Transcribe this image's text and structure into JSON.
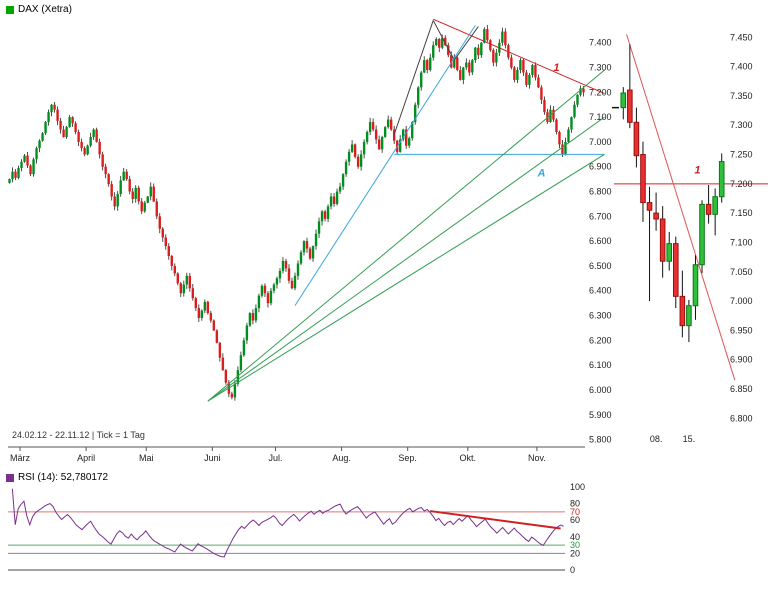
{
  "window": {
    "bg": "#ffffff"
  },
  "chart_data": [
    {
      "id": "main",
      "type": "candlestick",
      "title": "DAX (Xetra)",
      "swatch_color": "#00a500",
      "period_label": "24.02.12 - 22.11.12 | Tick = 1 Tag",
      "ylim": [
        5770,
        7540
      ],
      "up_color": "#008f1f",
      "down_color": "#d91e1e",
      "wick_color": "#222222",
      "y_ticks": [
        "7.400",
        "7.300",
        "7.200",
        "7.100",
        "7.000",
        "6.900",
        "6.800",
        "6.700",
        "6.600",
        "6.500",
        "6.400",
        "6.300",
        "6.200",
        "6.100",
        "6.000",
        "5.900",
        "5.800"
      ],
      "x_months": [
        {
          "label": "März",
          "i": 4
        },
        {
          "label": "April",
          "i": 26
        },
        {
          "label": "Mai",
          "i": 46
        },
        {
          "label": "Juni",
          "i": 68
        },
        {
          "label": "Jul.",
          "i": 89
        },
        {
          "label": "Aug.",
          "i": 111
        },
        {
          "label": "Sep.",
          "i": 133
        },
        {
          "label": "Okt.",
          "i": 153
        },
        {
          "label": "Nov.",
          "i": 176
        }
      ],
      "closes": [
        6850,
        6880,
        6855,
        6895,
        6920,
        6945,
        6905,
        6870,
        6930,
        6975,
        7005,
        7035,
        7080,
        7120,
        7150,
        7130,
        7085,
        7050,
        7020,
        7060,
        7100,
        7075,
        7040,
        7000,
        6975,
        6950,
        6985,
        7020,
        7050,
        7000,
        6950,
        6900,
        6870,
        6830,
        6780,
        6740,
        6790,
        6845,
        6880,
        6850,
        6800,
        6770,
        6815,
        6760,
        6720,
        6755,
        6780,
        6820,
        6760,
        6700,
        6650,
        6615,
        6580,
        6540,
        6500,
        6470,
        6430,
        6390,
        6425,
        6460,
        6410,
        6370,
        6330,
        6290,
        6320,
        6355,
        6310,
        6280,
        6240,
        6190,
        6130,
        6080,
        6030,
        5985,
        5970,
        6025,
        6080,
        6140,
        6200,
        6260,
        6310,
        6280,
        6330,
        6380,
        6420,
        6390,
        6350,
        6400,
        6425,
        6450,
        6480,
        6520,
        6490,
        6440,
        6410,
        6460,
        6510,
        6555,
        6600,
        6570,
        6530,
        6580,
        6630,
        6680,
        6720,
        6690,
        6740,
        6780,
        6750,
        6800,
        6820,
        6870,
        6920,
        6960,
        6990,
        6940,
        6900,
        6950,
        7000,
        7040,
        7080,
        7050,
        7010,
        6970,
        7020,
        7060,
        7090,
        7050,
        7005,
        6960,
        7010,
        7050,
        6985,
        7015,
        7080,
        7150,
        7220,
        7280,
        7330,
        7290,
        7340,
        7390,
        7415,
        7380,
        7420,
        7390,
        7350,
        7300,
        7340,
        7290,
        7250,
        7300,
        7320,
        7280,
        7330,
        7380,
        7350,
        7400,
        7455,
        7410,
        7370,
        7320,
        7360,
        7400,
        7445,
        7390,
        7340,
        7300,
        7250,
        7290,
        7330,
        7280,
        7230,
        7270,
        7310,
        7260,
        7220,
        7170,
        7120,
        7080,
        7130,
        7090,
        7040,
        6990,
        6950,
        7000,
        7050,
        7100,
        7150,
        7190,
        7215,
        7200
      ],
      "trendlines": [
        {
          "x1": 141,
          "p1": 7495,
          "x2": 198,
          "p2": 7195,
          "color": "#cc2222",
          "w": 1
        },
        {
          "x1": 128,
          "p1": 7030,
          "x2": 141,
          "p2": 7490,
          "color": "#444444",
          "w": 1
        },
        {
          "x1": 141,
          "p1": 7490,
          "x2": 148,
          "p2": 7330,
          "color": "#444444",
          "w": 1
        },
        {
          "x1": 148,
          "p1": 7330,
          "x2": 156,
          "p2": 7465,
          "color": "#444444",
          "w": 1
        },
        {
          "x1": 128,
          "p1": 6950,
          "x2": 198,
          "p2": 6950,
          "color": "#3aa7d8",
          "w": 1
        },
        {
          "x1": 95,
          "p1": 6340,
          "x2": 155,
          "p2": 7470,
          "color": "#3aa7d8",
          "w": 1
        },
        {
          "x1": 66,
          "p1": 5955,
          "x2": 198,
          "p2": 7290,
          "color": "#2f9e4f",
          "w": 1
        },
        {
          "x1": 66,
          "p1": 5955,
          "x2": 198,
          "p2": 7100,
          "color": "#2f9e4f",
          "w": 1
        },
        {
          "x1": 66,
          "p1": 5955,
          "x2": 198,
          "p2": 6950,
          "color": "#2f9e4f",
          "w": 1
        }
      ],
      "annotations": [
        {
          "text": "1",
          "x": 182,
          "p": 7285,
          "color": "#cc2222"
        },
        {
          "text": "A",
          "x": 177,
          "p": 6860,
          "color": "#3aa7d8"
        }
      ]
    },
    {
      "id": "detail",
      "type": "candlestick",
      "ylim": [
        6780,
        7500
      ],
      "up_color": "#2fbf3a",
      "up_border": "#0a7a14",
      "down_color": "#e83030",
      "down_border": "#991111",
      "wick_color": "#111111",
      "y_ticks": [
        "7.450",
        "7.400",
        "7.350",
        "7.300",
        "7.250",
        "7.200",
        "7.150",
        "7.100",
        "7.050",
        "7.000",
        "6.950",
        "6.900",
        "6.850",
        "6.800"
      ],
      "x_ticks": [
        {
          "label": "08.",
          "i": 5
        },
        {
          "label": "15.",
          "i": 10
        }
      ],
      "ohlc": [
        [
          7330,
          7365,
          7310,
          7355
        ],
        [
          7360,
          7438,
          7295,
          7305
        ],
        [
          7305,
          7330,
          7228,
          7248
        ],
        [
          7250,
          7272,
          7135,
          7168
        ],
        [
          7168,
          7195,
          7000,
          7155
        ],
        [
          7150,
          7185,
          7120,
          7140
        ],
        [
          7140,
          7162,
          7040,
          7068
        ],
        [
          7068,
          7118,
          7052,
          7098
        ],
        [
          7098,
          7110,
          6988,
          7008
        ],
        [
          7008,
          7052,
          6938,
          6958
        ],
        [
          6958,
          7002,
          6930,
          6992
        ],
        [
          6992,
          7078,
          6968,
          7062
        ],
        [
          7062,
          7172,
          7048,
          7165
        ],
        [
          7165,
          7198,
          7132,
          7148
        ],
        [
          7148,
          7192,
          7112,
          7178
        ],
        [
          7178,
          7252,
          7168,
          7238
        ]
      ],
      "hlines": [
        {
          "v": 7200,
          "color": "#dd2222"
        }
      ],
      "open_marker": {
        "v": 7330,
        "color": "#111111"
      },
      "trendlines": [
        {
          "x1": 0.5,
          "p1": 7455,
          "x2": 17,
          "p2": 6865,
          "color": "#e05555",
          "w": 1
        }
      ],
      "annotations": [
        {
          "text": "1",
          "x": 11.3,
          "p": 7218,
          "color": "#cc2222"
        }
      ]
    },
    {
      "id": "rsi",
      "type": "line",
      "legend": "RSI (14): 52,780172",
      "current_value": "52,780172",
      "period": 14,
      "swatch_color": "#7b2f8f",
      "line_color": "#7b2f8f",
      "ylim": [
        0,
        100
      ],
      "y_ticks": [
        {
          "label": "100",
          "color": "#222222"
        },
        {
          "label": "80",
          "color": "#222222"
        },
        {
          "label": "70",
          "color": "#cc2222"
        },
        {
          "label": "60",
          "color": "#222222"
        },
        {
          "label": "40",
          "color": "#222222"
        },
        {
          "label": "30",
          "color": "#229944"
        },
        {
          "label": "20",
          "color": "#222222"
        },
        {
          "label": "0",
          "color": "#222222"
        }
      ],
      "levels": [
        {
          "v": 70,
          "color": "#dd7777"
        },
        {
          "v": 30,
          "color": "#55aa66"
        },
        {
          "v": 20,
          "color": "#888888"
        },
        {
          "v": 0,
          "color": "#444444"
        }
      ],
      "trendlines": [
        {
          "x1": 145,
          "v1": 71,
          "x2": 190,
          "v2": 50,
          "color": "#cc2222",
          "w": 2
        }
      ]
    }
  ]
}
